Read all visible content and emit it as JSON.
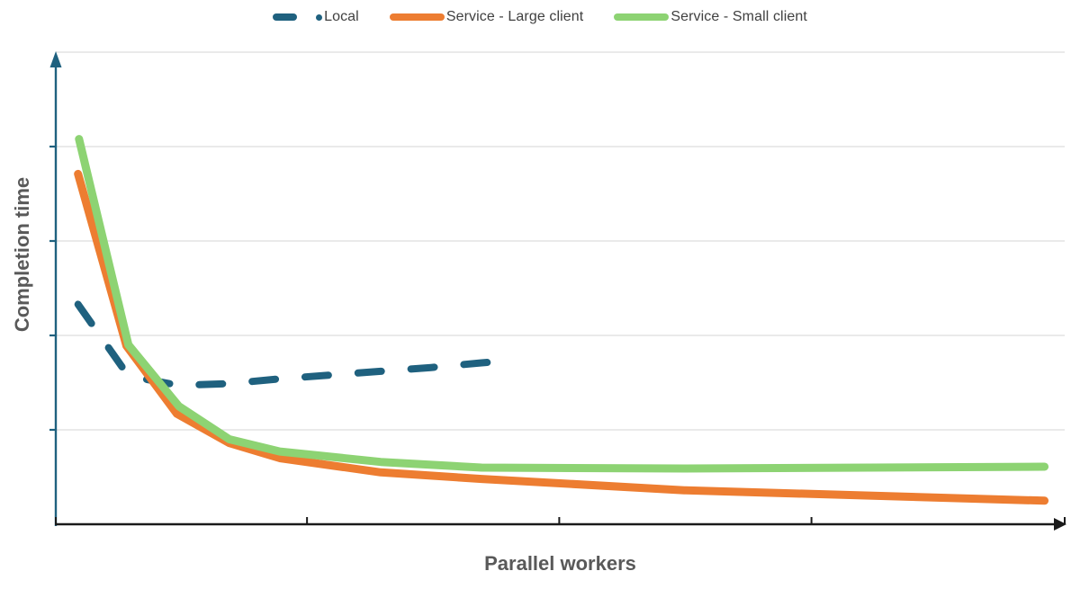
{
  "axes": {
    "x_label": "Parallel workers",
    "y_label": "Completion time"
  },
  "chart_data": {
    "type": "line",
    "title": "",
    "xlabel": "Parallel workers",
    "ylabel": "Completion time",
    "grid": "horizontal-only",
    "legend_position": "top-center",
    "axis_tick_labels_visible": false,
    "notes": "Axes are unlabeled (qualitative chart). x values are normalized 0-1 along the x-axis; y values are in gridline units (1 unit = one horizontal gridline spacing above the x-axis).",
    "x_axis": {
      "ticks_normalized": [
        0,
        0.249,
        0.499,
        0.749,
        1.0
      ],
      "arrow": true,
      "color": "#1A1A1A"
    },
    "y_axis": {
      "gridline_units": [
        1,
        2,
        3,
        4,
        5
      ],
      "tick_units": [
        1,
        2,
        3,
        4
      ],
      "arrow": true,
      "color": "#1F617F",
      "ylim_units": [
        0,
        5
      ]
    },
    "gridline_color": "#E3E3E3",
    "series": [
      {
        "name": "Local",
        "color": "#1F617F",
        "dashed": true,
        "legend_marker": "dash-dot",
        "points": [
          [
            0.022,
            2.33
          ],
          [
            0.072,
            1.57
          ],
          [
            0.122,
            1.47
          ],
          [
            0.172,
            1.49
          ],
          [
            0.222,
            1.54
          ],
          [
            0.272,
            1.58
          ],
          [
            0.322,
            1.62
          ],
          [
            0.372,
            1.66
          ],
          [
            0.422,
            1.71
          ],
          [
            0.447,
            1.73
          ]
        ]
      },
      {
        "name": "Service - Large client",
        "color": "#ED7D31",
        "dashed": false,
        "legend_marker": "solid-bar",
        "points": [
          [
            0.022,
            3.71
          ],
          [
            0.07,
            1.89
          ],
          [
            0.12,
            1.17
          ],
          [
            0.172,
            0.86
          ],
          [
            0.222,
            0.7
          ],
          [
            0.322,
            0.55
          ],
          [
            0.422,
            0.48
          ],
          [
            0.623,
            0.36
          ],
          [
            0.98,
            0.25
          ]
        ]
      },
      {
        "name": "Service - Small client",
        "color": "#8DD373",
        "dashed": false,
        "legend_marker": "solid-bar",
        "points": [
          [
            0.023,
            4.08
          ],
          [
            0.072,
            1.9
          ],
          [
            0.122,
            1.25
          ],
          [
            0.172,
            0.9
          ],
          [
            0.222,
            0.77
          ],
          [
            0.322,
            0.66
          ],
          [
            0.422,
            0.6
          ],
          [
            0.623,
            0.59
          ],
          [
            0.98,
            0.61
          ]
        ]
      }
    ]
  },
  "text_colors": {
    "legend_text": "#404040",
    "axis_title_text": "#595959"
  }
}
